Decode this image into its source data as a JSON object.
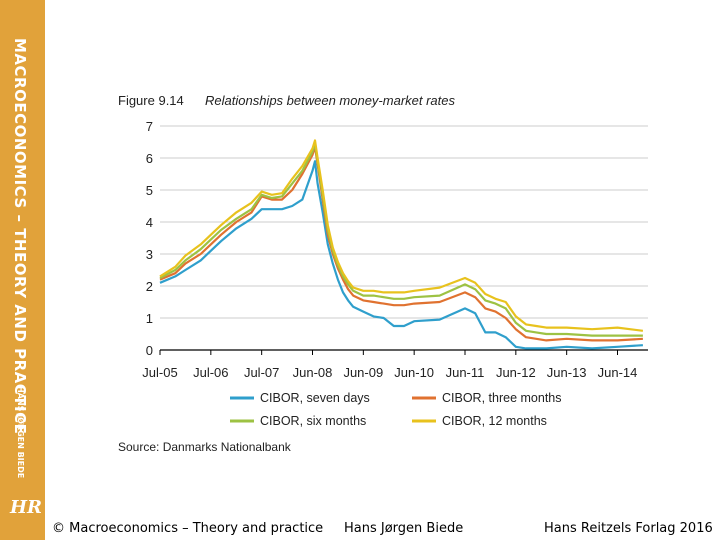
{
  "sidebar": {
    "book_title": "MACROECONOMICS – THEORY AND PRACTICE",
    "author": "HANS JØRGEN BIEDE",
    "logo": "HR"
  },
  "footer": {
    "copyright": "© Macroeconomics – Theory and practice",
    "author": "Hans Jørgen Biede",
    "publisher": "Hans Reitzels Forlag 2016"
  },
  "chart_data": {
    "type": "line",
    "figure_label": "Figure 9.14",
    "title": "Relationships between money-market rates",
    "source": "Source: Danmarks Nationalbank",
    "ylim": [
      0,
      7
    ],
    "yticks": [
      "0",
      "1",
      "2",
      "3",
      "4",
      "5",
      "6",
      "7"
    ],
    "xlim": [
      0,
      9.6
    ],
    "xticks": [
      "Jul-05",
      "Jul-06",
      "Jul-07",
      "Jun-08",
      "Jun-09",
      "Jun-10",
      "Jun-11",
      "Jun-12",
      "Jun-13",
      "Jun-14"
    ],
    "grid": true,
    "legend_position": "bottom",
    "series": [
      {
        "name": "CIBOR, seven days",
        "color": "#2f9fcc",
        "x": [
          0,
          0.3,
          0.5,
          0.8,
          1,
          1.2,
          1.5,
          1.8,
          2,
          2.2,
          2.4,
          2.6,
          2.8,
          3,
          3.05,
          3.1,
          3.2,
          3.3,
          3.4,
          3.5,
          3.6,
          3.7,
          3.8,
          4,
          4.2,
          4.4,
          4.6,
          4.8,
          5,
          5.5,
          6,
          6.2,
          6.4,
          6.6,
          6.8,
          7,
          7.2,
          7.4,
          7.6,
          8,
          8.5,
          9,
          9.5
        ],
        "y": [
          2.1,
          2.3,
          2.5,
          2.8,
          3.1,
          3.4,
          3.8,
          4.1,
          4.4,
          4.4,
          4.4,
          4.5,
          4.7,
          5.6,
          5.9,
          5.2,
          4.3,
          3.3,
          2.7,
          2.2,
          1.8,
          1.55,
          1.35,
          1.2,
          1.05,
          1,
          0.75,
          0.75,
          0.9,
          0.95,
          1.3,
          1.15,
          0.55,
          0.55,
          0.4,
          0.1,
          0.05,
          0.05,
          0.05,
          0.1,
          0.05,
          0.1,
          0.15
        ]
      },
      {
        "name": "CIBOR, three months",
        "color": "#e07230",
        "x": [
          0,
          0.3,
          0.5,
          0.8,
          1,
          1.2,
          1.5,
          1.8,
          2,
          2.2,
          2.4,
          2.6,
          2.8,
          3,
          3.05,
          3.1,
          3.2,
          3.3,
          3.4,
          3.5,
          3.6,
          3.7,
          3.8,
          4,
          4.2,
          4.4,
          4.6,
          4.8,
          5,
          5.5,
          6,
          6.2,
          6.4,
          6.6,
          6.8,
          7,
          7.2,
          7.4,
          7.6,
          8,
          8.5,
          9,
          9.5
        ],
        "y": [
          2.2,
          2.4,
          2.7,
          3,
          3.3,
          3.6,
          4,
          4.3,
          4.8,
          4.7,
          4.7,
          5,
          5.5,
          6.1,
          6.35,
          5.8,
          4.7,
          3.6,
          3,
          2.55,
          2.2,
          1.9,
          1.7,
          1.55,
          1.5,
          1.45,
          1.4,
          1.4,
          1.45,
          1.5,
          1.8,
          1.65,
          1.3,
          1.2,
          1,
          0.65,
          0.4,
          0.35,
          0.3,
          0.35,
          0.3,
          0.3,
          0.35
        ]
      },
      {
        "name": "CIBOR, six months",
        "color": "#9dc243",
        "x": [
          0,
          0.3,
          0.5,
          0.8,
          1,
          1.2,
          1.5,
          1.8,
          2,
          2.2,
          2.4,
          2.6,
          2.8,
          3,
          3.05,
          3.1,
          3.2,
          3.3,
          3.4,
          3.5,
          3.6,
          3.7,
          3.8,
          4,
          4.2,
          4.4,
          4.6,
          4.8,
          5,
          5.5,
          6,
          6.2,
          6.4,
          6.6,
          6.8,
          7,
          7.2,
          7.4,
          7.6,
          8,
          8.5,
          9,
          9.5
        ],
        "y": [
          2.25,
          2.5,
          2.8,
          3.15,
          3.45,
          3.75,
          4.1,
          4.4,
          4.85,
          4.75,
          4.8,
          5.2,
          5.6,
          6.2,
          6.45,
          5.9,
          4.85,
          3.75,
          3.1,
          2.65,
          2.3,
          2.05,
          1.85,
          1.7,
          1.7,
          1.65,
          1.6,
          1.6,
          1.65,
          1.7,
          2.05,
          1.9,
          1.55,
          1.45,
          1.3,
          0.85,
          0.6,
          0.55,
          0.5,
          0.5,
          0.45,
          0.45,
          0.45
        ]
      },
      {
        "name": "CIBOR, 12 months",
        "color": "#e8c21d",
        "x": [
          0,
          0.3,
          0.5,
          0.8,
          1,
          1.2,
          1.5,
          1.8,
          2,
          2.2,
          2.4,
          2.6,
          2.8,
          3,
          3.05,
          3.1,
          3.2,
          3.3,
          3.4,
          3.5,
          3.6,
          3.7,
          3.8,
          4,
          4.2,
          4.4,
          4.6,
          4.8,
          5,
          5.5,
          6,
          6.2,
          6.4,
          6.6,
          6.8,
          7,
          7.2,
          7.4,
          7.6,
          8,
          8.5,
          9,
          9.5
        ],
        "y": [
          2.3,
          2.6,
          2.95,
          3.3,
          3.6,
          3.9,
          4.3,
          4.6,
          4.95,
          4.85,
          4.9,
          5.35,
          5.75,
          6.3,
          6.55,
          6,
          5,
          3.9,
          3.2,
          2.75,
          2.4,
          2.15,
          1.95,
          1.85,
          1.85,
          1.8,
          1.8,
          1.8,
          1.85,
          1.95,
          2.25,
          2.1,
          1.75,
          1.6,
          1.5,
          1.05,
          0.8,
          0.75,
          0.7,
          0.7,
          0.65,
          0.7,
          0.6
        ]
      }
    ]
  }
}
